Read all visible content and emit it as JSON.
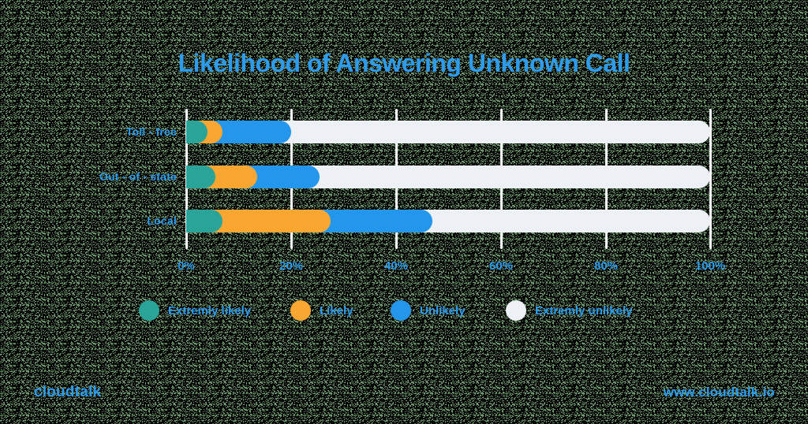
{
  "title": "Likelihood of Answering Unknown Call",
  "footer": {
    "brand": "cloudtalk",
    "website": "www.cloudtalk.io"
  },
  "colors": {
    "text_blue": "#2D9CEC",
    "teal": "#2AA498",
    "orange": "#F9A732",
    "blue": "#2496EC",
    "light": "#EDF1F5",
    "gridline": "#F7F9FB",
    "noise_green_dark": "#53794F",
    "noise_green_light": "#6F9B70",
    "noise_black": "#050605"
  },
  "chart_data": {
    "type": "bar",
    "orientation": "horizontal",
    "stacked": true,
    "title": "Likelihood of Answering Unknown Call",
    "categories": [
      "Toll - free",
      "Out - of - state",
      "Local"
    ],
    "series": [
      {
        "name": "Extremly likely",
        "color": "#2AA498",
        "values": [
          4,
          5.5,
          7
        ]
      },
      {
        "name": "Likely",
        "color": "#F9A732",
        "values": [
          3,
          8,
          20.5
        ]
      },
      {
        "name": "Unlikely",
        "color": "#2496EC",
        "values": [
          13,
          12,
          19.5
        ]
      },
      {
        "name": "Extremly unlikely",
        "color": "#EDF1F5",
        "values": [
          80,
          74.5,
          53
        ]
      }
    ],
    "cumulative_percent": {
      "Toll - free": [
        4,
        7,
        20,
        100
      ],
      "Out - of - state": [
        5.5,
        13.5,
        25.5,
        100
      ],
      "Local": [
        7,
        27.5,
        47,
        100
      ]
    },
    "x_ticks": [
      "0%",
      "20%",
      "40%",
      "60%",
      "80%",
      "100%"
    ],
    "xlim": [
      0,
      100
    ],
    "xlabel": "",
    "ylabel": "",
    "grid": true,
    "legend_position": "bottom"
  }
}
